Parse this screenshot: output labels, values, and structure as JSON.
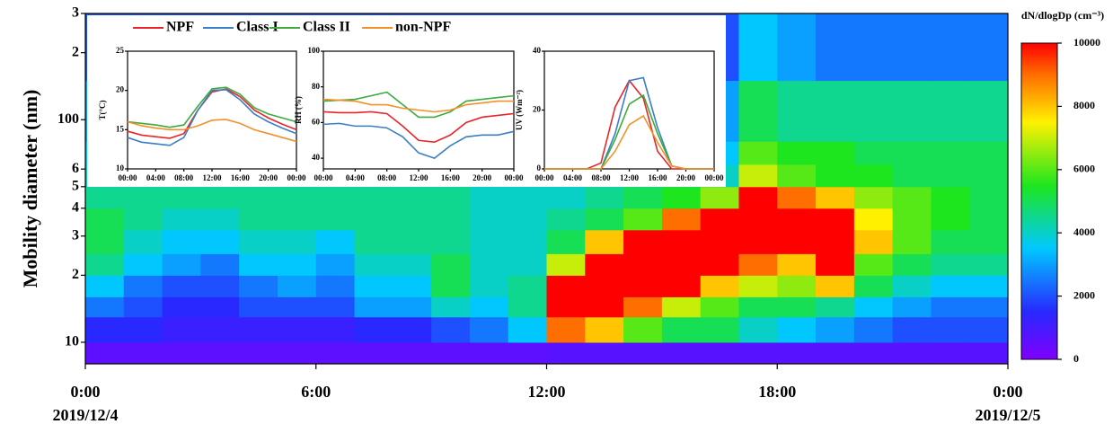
{
  "chart_data": [
    {
      "type": "heatmap",
      "ylabel": "Mobility diameter (nm)",
      "log_y": true,
      "x_bins": [
        0,
        1,
        2,
        3,
        4,
        5,
        6,
        7,
        8,
        9,
        10,
        11,
        12,
        13,
        14,
        15,
        16,
        17,
        18,
        19,
        20,
        21,
        22,
        23,
        24
      ],
      "y_bins": [
        8,
        10,
        13,
        16,
        20,
        25,
        32,
        40,
        50,
        63,
        80,
        150,
        300
      ],
      "xlim": [
        0,
        24
      ],
      "ylim": [
        8,
        300
      ],
      "xticks": [
        {
          "value": 0,
          "label": "0:00"
        },
        {
          "value": 6,
          "label": "6:00"
        },
        {
          "value": 12,
          "label": "12:00"
        },
        {
          "value": 18,
          "label": "18:00"
        },
        {
          "value": 24,
          "label": "0:00"
        }
      ],
      "x_tick_dates": [
        {
          "value": 0,
          "label": "2019/12/4"
        },
        {
          "value": 24,
          "label": "2019/12/5"
        }
      ],
      "yticks": [
        {
          "value": 300,
          "label": "3"
        },
        {
          "value": 200,
          "label": "2"
        },
        100,
        {
          "value": 60,
          "label": "6"
        },
        {
          "value": 50,
          "label": "5"
        },
        {
          "value": 40,
          "label": "4"
        },
        {
          "value": 30,
          "label": "3"
        },
        {
          "value": 20,
          "label": "2"
        },
        10
      ],
      "colorbar_title": "dN/dlogDp (cm⁻³)",
      "zlim": [
        0,
        10000
      ],
      "zticks": [
        0,
        2000,
        4000,
        6000,
        8000,
        10000
      ],
      "z": [
        [
          600,
          600,
          600,
          600,
          600,
          600,
          600,
          600,
          600,
          600,
          600,
          600,
          700,
          700,
          700,
          700,
          700,
          700,
          700,
          700,
          700,
          700,
          700,
          700
        ],
        [
          1500,
          1500,
          1200,
          1200,
          1200,
          1200,
          1200,
          1500,
          1500,
          2000,
          2500,
          3500,
          9000,
          8000,
          6000,
          5000,
          5000,
          4000,
          3500,
          3000,
          2500,
          2000,
          2000,
          2000
        ],
        [
          2500,
          2000,
          1500,
          1500,
          2000,
          2000,
          2000,
          3000,
          3000,
          4000,
          3500,
          4500,
          10000,
          10000,
          9000,
          7000,
          6000,
          5000,
          5000,
          4500,
          3500,
          3000,
          2500,
          2500
        ],
        [
          3500,
          2500,
          2000,
          2000,
          2500,
          3000,
          2500,
          3500,
          3500,
          5000,
          4000,
          4500,
          10000,
          10000,
          10000,
          10000,
          8000,
          7000,
          6500,
          8000,
          5000,
          4000,
          3500,
          3500
        ],
        [
          4500,
          3500,
          3000,
          2500,
          3500,
          3500,
          3000,
          4000,
          4000,
          5000,
          4000,
          4000,
          7000,
          10000,
          10000,
          10000,
          10000,
          9000,
          8000,
          10000,
          6000,
          5000,
          4500,
          4500
        ],
        [
          5000,
          4000,
          3500,
          3500,
          4000,
          4000,
          3500,
          4500,
          4500,
          4500,
          4000,
          4000,
          5000,
          8000,
          10000,
          10000,
          10000,
          10000,
          10000,
          10000,
          8000,
          6000,
          5000,
          5000
        ],
        [
          5000,
          4500,
          4000,
          4000,
          4500,
          4500,
          4500,
          4500,
          4500,
          4500,
          4000,
          4000,
          4500,
          5000,
          6000,
          9000,
          10000,
          10000,
          10000,
          10000,
          7500,
          6000,
          5500,
          5000
        ],
        [
          4500,
          4500,
          4500,
          4500,
          4500,
          4500,
          4500,
          4500,
          4500,
          4500,
          4000,
          4000,
          4000,
          4500,
          5000,
          5500,
          6500,
          10000,
          9000,
          8000,
          6500,
          6000,
          5500,
          5000
        ],
        [
          4000,
          4000,
          4000,
          4000,
          4000,
          4000,
          4000,
          4000,
          4000,
          4000,
          4000,
          4000,
          4000,
          4000,
          4000,
          4000,
          4000,
          7000,
          6000,
          5500,
          5500,
          5000,
          5000,
          5000
        ],
        [
          3500,
          3500,
          3500,
          3500,
          3500,
          3500,
          3500,
          3500,
          3500,
          3500,
          3500,
          3500,
          3500,
          3500,
          3500,
          3500,
          3500,
          6000,
          5500,
          5500,
          5000,
          5000,
          5000,
          5000
        ],
        [
          3000,
          3000,
          3000,
          3000,
          3000,
          3000,
          3000,
          3000,
          3000,
          3000,
          3000,
          3000,
          3000,
          3000,
          3000,
          3000,
          3000,
          5000,
          4500,
          4500,
          4500,
          4500,
          4500,
          4500
        ],
        [
          2000,
          2000,
          2000,
          2000,
          2000,
          2000,
          2000,
          2000,
          2000,
          2000,
          2000,
          2000,
          2000,
          2000,
          2000,
          2000,
          2000,
          3500,
          3000,
          2500,
          2500,
          2500,
          2500,
          2500
        ]
      ]
    },
    {
      "type": "line",
      "ylabel": "T(°C)",
      "x": [
        0,
        2,
        4,
        6,
        8,
        10,
        12,
        14,
        16,
        18,
        20,
        22,
        24
      ],
      "xlim": [
        0,
        24
      ],
      "ylim": [
        10,
        25
      ],
      "xticks": [
        {
          "value": 0,
          "label": "00:00"
        },
        {
          "value": 4,
          "label": "04:00"
        },
        {
          "value": 8,
          "label": "08:00"
        },
        {
          "value": 12,
          "label": "12:00"
        },
        {
          "value": 16,
          "label": "16:00"
        },
        {
          "value": 20,
          "label": "20:00"
        },
        {
          "value": 24,
          "label": "00:00"
        }
      ],
      "yticks": [
        10,
        15,
        20,
        25
      ],
      "series": [
        {
          "name": "NPF",
          "color": "#e8252a",
          "values": [
            14.8,
            14.3,
            14.1,
            13.9,
            14.5,
            17.5,
            19.8,
            20.2,
            19.2,
            17.5,
            16.5,
            15.7,
            15.0
          ]
        },
        {
          "name": "Class I",
          "color": "#3a7fc4",
          "values": [
            14.0,
            13.4,
            13.2,
            13.0,
            14.0,
            17.5,
            20.0,
            20.1,
            18.8,
            17.0,
            16.0,
            15.2,
            14.5
          ]
        },
        {
          "name": "Class II",
          "color": "#3dab3d",
          "values": [
            16.0,
            15.8,
            15.6,
            15.3,
            15.6,
            18.0,
            20.2,
            20.4,
            19.5,
            17.8,
            17.0,
            16.5,
            16.0
          ]
        },
        {
          "name": "non-NPF",
          "color": "#f2912b",
          "values": [
            16.0,
            15.5,
            15.2,
            15.0,
            15.0,
            15.5,
            16.2,
            16.3,
            15.8,
            15.0,
            14.5,
            14.0,
            13.5
          ]
        }
      ]
    },
    {
      "type": "line",
      "ylabel": "RH (%)",
      "x": [
        0,
        2,
        4,
        6,
        8,
        10,
        12,
        14,
        16,
        18,
        20,
        22,
        24
      ],
      "xlim": [
        0,
        24
      ],
      "ylim": [
        34,
        100
      ],
      "xticks": [
        {
          "value": 0,
          "label": "00:00"
        },
        {
          "value": 4,
          "label": "04:00"
        },
        {
          "value": 8,
          "label": "08:00"
        },
        {
          "value": 12,
          "label": "12:00"
        },
        {
          "value": 16,
          "label": "16:00"
        },
        {
          "value": 20,
          "label": "20:00"
        },
        {
          "value": 24,
          "label": "00:00"
        }
      ],
      "yticks": [
        40,
        60,
        80,
        100
      ],
      "series": [
        {
          "color": "#e8252a",
          "values": [
            66,
            65.5,
            65.5,
            66,
            65,
            58,
            50,
            49,
            53,
            60,
            63,
            64,
            65
          ]
        },
        {
          "color": "#3a7fc4",
          "values": [
            59,
            59.5,
            58,
            58,
            57,
            52,
            43,
            40,
            47,
            52,
            53,
            53,
            55
          ]
        },
        {
          "color": "#3dab3d",
          "values": [
            72,
            72.5,
            73,
            75,
            77,
            70,
            63,
            63,
            66,
            72,
            73,
            74,
            75
          ]
        },
        {
          "color": "#f2912b",
          "values": [
            73,
            72.5,
            72,
            70,
            70,
            68,
            67,
            66,
            67,
            70,
            71,
            72,
            72
          ]
        }
      ]
    },
    {
      "type": "line",
      "ylabel": "UV (Wm⁻²)",
      "x": [
        0,
        2,
        4,
        6,
        8,
        10,
        12,
        14,
        16,
        18,
        20,
        22,
        24
      ],
      "xlim": [
        0,
        24
      ],
      "ylim": [
        0,
        40
      ],
      "xticks": [
        {
          "value": 0,
          "label": "00:00"
        },
        {
          "value": 4,
          "label": "04:00"
        },
        {
          "value": 8,
          "label": "08:00"
        },
        {
          "value": 12,
          "label": "12:00"
        },
        {
          "value": 16,
          "label": "16:00"
        },
        {
          "value": 20,
          "label": "20:00"
        },
        {
          "value": 24,
          "label": "00:00"
        }
      ],
      "yticks": [
        0,
        20,
        40
      ],
      "series": [
        {
          "color": "#e8252a",
          "values": [
            0,
            0,
            0,
            0,
            2,
            21,
            30,
            24,
            6,
            0,
            0,
            0,
            0
          ]
        },
        {
          "color": "#3a7fc4",
          "values": [
            0,
            0,
            0,
            0,
            0,
            12,
            30,
            31,
            14,
            1,
            0,
            0,
            0
          ]
        },
        {
          "color": "#3dab3d",
          "values": [
            0,
            0,
            0,
            0,
            0,
            10,
            22,
            25,
            12,
            1,
            0,
            0,
            0
          ]
        },
        {
          "color": "#f2912b",
          "values": [
            0,
            0,
            0,
            0,
            0,
            6,
            15,
            18,
            9,
            1,
            0,
            0,
            0
          ]
        }
      ]
    }
  ]
}
